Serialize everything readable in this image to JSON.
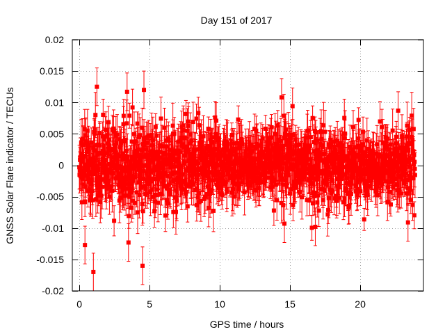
{
  "chart_data": {
    "type": "scatter",
    "title": "Day 151 of 2017",
    "xlabel": "GPS time / hours",
    "ylabel": "GNSS Solar Flare indicator / TECUs",
    "xlim": [
      -0.5,
      24.5
    ],
    "ylim": [
      -0.02,
      0.02
    ],
    "xticks": [
      0,
      5,
      10,
      15,
      20
    ],
    "xtick_labels": [
      "0",
      "5",
      "10",
      "15",
      "20"
    ],
    "yticks": [
      0.02,
      0.015,
      0.01,
      0.005,
      0,
      -0.005,
      -0.01,
      -0.015,
      -0.02
    ],
    "ytick_labels": [
      "0.02",
      "0.015",
      "0.01",
      "0.005",
      "0",
      "-0.005",
      "-0.01",
      "-0.015",
      "-0.02"
    ],
    "grid": true,
    "color": "#ff0000",
    "series": [
      {
        "name": "GNSS Solar Flare indicator",
        "marker": "square",
        "error_bars": true,
        "x_range_hours": [
          0,
          23.9
        ],
        "sample_count": 1440,
        "typical_spread": 0.004,
        "typical_error": 0.0025,
        "notable_points": [
          {
            "x": 1.0,
            "y": -0.017
          },
          {
            "x": 0.4,
            "y": -0.0127
          },
          {
            "x": 1.25,
            "y": 0.0125
          },
          {
            "x": 4.5,
            "y": -0.016
          },
          {
            "x": 4.6,
            "y": 0.012
          },
          {
            "x": 3.5,
            "y": -0.0123
          },
          {
            "x": 3.4,
            "y": 0.0117
          },
          {
            "x": 14.4,
            "y": 0.0108
          },
          {
            "x": 14.6,
            "y": -0.0093
          },
          {
            "x": 23.4,
            "y": -0.0091
          },
          {
            "x": 22.7,
            "y": 0.0087
          },
          {
            "x": 9.2,
            "y": -0.0068
          },
          {
            "x": 16.8,
            "y": -0.0098
          }
        ]
      }
    ]
  }
}
